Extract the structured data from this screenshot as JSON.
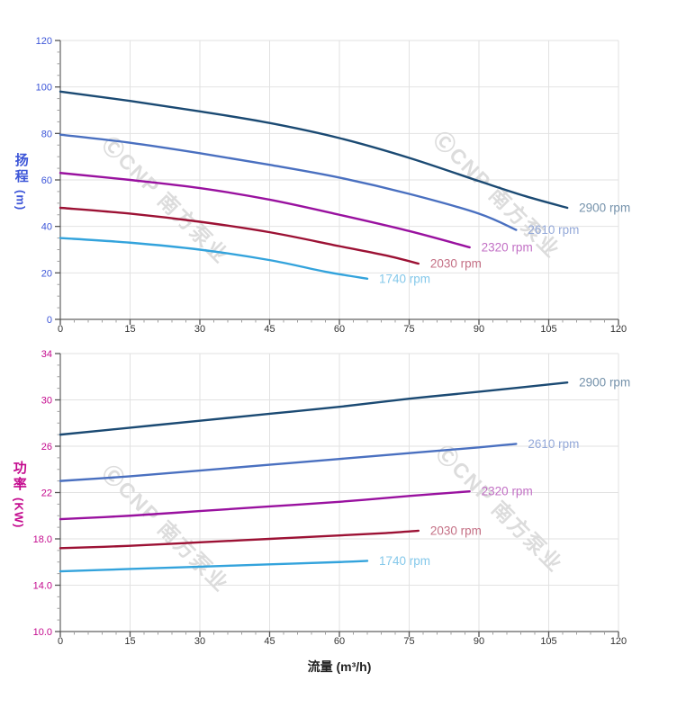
{
  "style": {
    "grid_color": "#e2e2e2",
    "axis_line_color": "#606060",
    "major_tick_color": "#555555",
    "minor_tick_color": "#a0a0a0",
    "xtick_label_color": "#333333",
    "watermark_color": "#dcdcdc"
  },
  "watermark": {
    "text": "ⒸCNP 南方泵业"
  },
  "chart_data": [
    {
      "type": "line",
      "title": "",
      "ylabel": "扬程",
      "ylabel_unit": "(m)",
      "ylabel_color": "#3d56d8",
      "xlabel": "",
      "xlim": [
        0,
        120
      ],
      "ylim": [
        0,
        120
      ],
      "grid": true,
      "legend_position": "end-of-line",
      "xticks": [
        0,
        15,
        30,
        45,
        60,
        75,
        90,
        105,
        120
      ],
      "xtick_labels": [
        "0",
        "15",
        "30",
        "45",
        "60",
        "75",
        "90",
        "105",
        "120"
      ],
      "yticks": [
        0,
        20,
        40,
        60,
        80,
        100,
        120
      ],
      "ytick_labels": [
        "0",
        "20",
        "40",
        "60",
        "80",
        "100",
        "120"
      ],
      "x_minor_step": 3,
      "y_minor_step": 5,
      "series": [
        {
          "name": "2900 rpm",
          "color": "#1b4a73",
          "label_color": "#7592ab",
          "x": [
            0,
            15,
            30,
            45,
            60,
            75,
            90,
            100,
            109
          ],
          "y": [
            98,
            94,
            89.5,
            84.5,
            78,
            69.5,
            59.5,
            53,
            48
          ]
        },
        {
          "name": "2610 rpm",
          "color": "#4a70c0",
          "label_color": "#94a9d9",
          "x": [
            0,
            15,
            30,
            45,
            60,
            75,
            90,
            98
          ],
          "y": [
            79.5,
            76,
            71.5,
            66.5,
            61,
            54,
            45.5,
            38.5
          ]
        },
        {
          "name": "2320 rpm",
          "color": "#99119f",
          "label_color": "#c270c5",
          "x": [
            0,
            15,
            30,
            45,
            60,
            75,
            88
          ],
          "y": [
            63,
            60,
            56.5,
            51.5,
            45,
            38,
            31
          ]
        },
        {
          "name": "2030 rpm",
          "color": "#9c1134",
          "label_color": "#c47085",
          "x": [
            0,
            15,
            30,
            45,
            60,
            70,
            77
          ],
          "y": [
            48,
            45.5,
            42,
            37.5,
            31.5,
            27.5,
            24
          ]
        },
        {
          "name": "1740 rpm",
          "color": "#33a3dc",
          "label_color": "#84c8ea",
          "x": [
            0,
            15,
            30,
            45,
            57,
            66
          ],
          "y": [
            35,
            33,
            30,
            25.5,
            20.5,
            17.5
          ]
        }
      ]
    },
    {
      "type": "line",
      "title": "",
      "ylabel": "功率",
      "ylabel_unit": "(KW)",
      "ylabel_color": "#c40a8e",
      "xlabel": "流量 (m³/h)",
      "xlim": [
        0,
        120
      ],
      "ylim": [
        10,
        34
      ],
      "grid": true,
      "legend_position": "end-of-line",
      "xticks": [
        0,
        15,
        30,
        45,
        60,
        75,
        90,
        105,
        120
      ],
      "xtick_labels": [
        "0",
        "15",
        "30",
        "45",
        "60",
        "75",
        "90",
        "105",
        "120"
      ],
      "yticks": [
        10,
        14,
        18,
        22,
        26,
        30,
        34
      ],
      "ytick_labels": [
        "10.0",
        "14.0",
        "18.0",
        "22",
        "26",
        "30",
        "34"
      ],
      "x_minor_step": 3,
      "y_minor_step": 1,
      "series": [
        {
          "name": "2900 rpm",
          "color": "#1b4a73",
          "label_color": "#7592ab",
          "x": [
            0,
            15,
            30,
            45,
            60,
            75,
            90,
            109
          ],
          "y": [
            27,
            27.6,
            28.2,
            28.8,
            29.4,
            30.1,
            30.7,
            31.5
          ]
        },
        {
          "name": "2610 rpm",
          "color": "#4a70c0",
          "label_color": "#94a9d9",
          "x": [
            0,
            15,
            30,
            45,
            60,
            75,
            90,
            98
          ],
          "y": [
            23,
            23.4,
            23.9,
            24.4,
            24.9,
            25.4,
            25.9,
            26.2
          ]
        },
        {
          "name": "2320 rpm",
          "color": "#99119f",
          "label_color": "#c270c5",
          "x": [
            0,
            15,
            30,
            45,
            60,
            75,
            88
          ],
          "y": [
            19.7,
            20,
            20.4,
            20.8,
            21.2,
            21.7,
            22.1
          ]
        },
        {
          "name": "2030 rpm",
          "color": "#9c1134",
          "label_color": "#c47085",
          "x": [
            0,
            15,
            30,
            45,
            60,
            70,
            77
          ],
          "y": [
            17.2,
            17.4,
            17.7,
            18,
            18.3,
            18.5,
            18.7
          ]
        },
        {
          "name": "1740 rpm",
          "color": "#33a3dc",
          "label_color": "#84c8ea",
          "x": [
            0,
            15,
            30,
            45,
            60,
            66
          ],
          "y": [
            15.2,
            15.4,
            15.6,
            15.8,
            16,
            16.1
          ]
        }
      ]
    }
  ]
}
